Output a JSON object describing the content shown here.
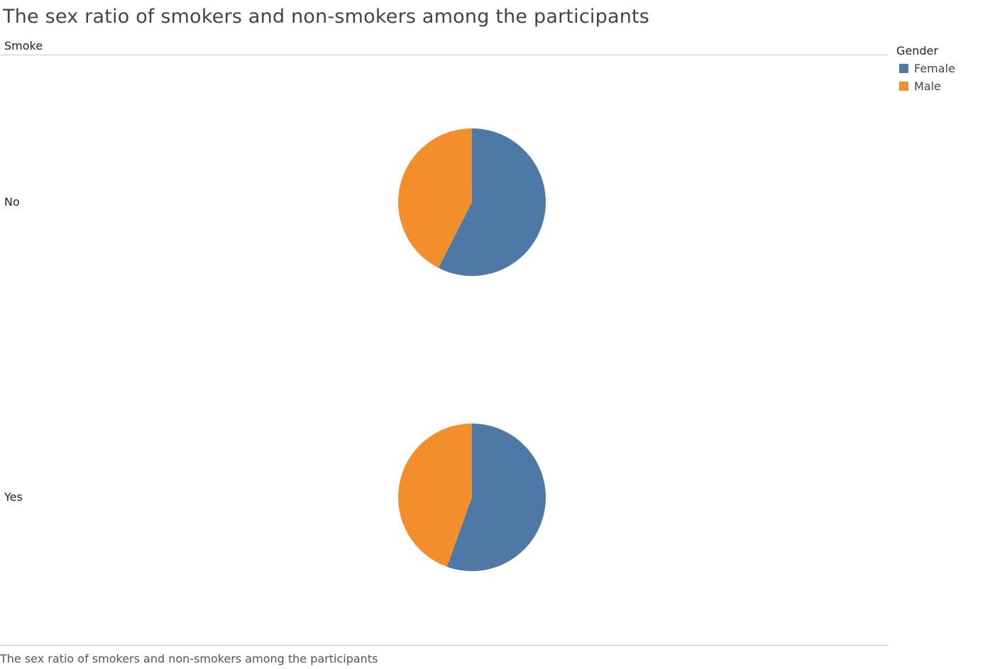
{
  "title": "The sex ratio of smokers and non-smokers among the participants",
  "row_header": "Smoke",
  "legend": {
    "title": "Gender",
    "items": [
      {
        "label": "Female",
        "color": "#4e79a7"
      },
      {
        "label": "Male",
        "color": "#f28e2b"
      }
    ]
  },
  "caption": "The sex ratio of smokers and non-smokers among the participants",
  "chart_data": {
    "type": "pie",
    "title": "The sex ratio of smokers and non-smokers among the participants",
    "facet_label": "Smoke",
    "legend_title": "Gender",
    "legend_position": "top-right",
    "categories": [
      "Female",
      "Male"
    ],
    "colors": [
      "#4e79a7",
      "#f28e2b"
    ],
    "facets": [
      {
        "label": "No",
        "values": [
          0.575,
          0.425
        ]
      },
      {
        "label": "Yes",
        "values": [
          0.555,
          0.445
        ]
      }
    ]
  }
}
